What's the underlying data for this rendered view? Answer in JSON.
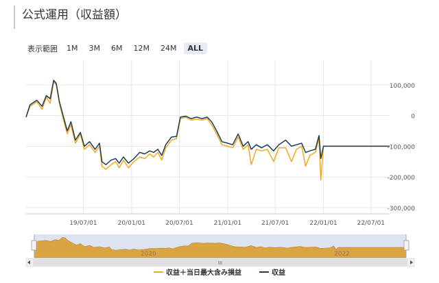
{
  "header": {
    "title": "公式運用（収益額）"
  },
  "range_selector": {
    "label": "表示範囲",
    "buttons": [
      "1M",
      "3M",
      "6M",
      "12M",
      "24M",
      "ALL"
    ],
    "selected": "ALL"
  },
  "navigator": {
    "year_labels": [
      "2020",
      "2022"
    ],
    "handle_glyph": "III"
  },
  "colors": {
    "gold": "#f2a81d",
    "navy": "#1d3a52",
    "nav_fill": "#d9a441",
    "nav_bg": "#dde3f1"
  },
  "chart_data": {
    "type": "line",
    "title": "",
    "ylim": [
      -320000,
      180000
    ],
    "y_ticks": [
      {
        "value": 100000,
        "label": "100,000"
      },
      {
        "value": 0,
        "label": "0"
      },
      {
        "value": -100000,
        "label": "-100,000"
      },
      {
        "value": -200000,
        "label": "-200,000"
      },
      {
        "value": -300000,
        "label": "-300,000"
      }
    ],
    "x_range": [
      "2018-11-25",
      "2022-09-10"
    ],
    "x_ticks": [
      {
        "date": "2019-07-01",
        "label": "19/07/01"
      },
      {
        "date": "2020-01-01",
        "label": "20/01/01"
      },
      {
        "date": "2020-07-01",
        "label": "20/07/01"
      },
      {
        "date": "2021-01-01",
        "label": "21/01/01"
      },
      {
        "date": "2021-07-01",
        "label": "21/07/01"
      },
      {
        "date": "2022-01-01",
        "label": "22/01/01"
      },
      {
        "date": "2022-07-01",
        "label": "22/07/01"
      }
    ],
    "legend_position": "bottom-center",
    "series": [
      {
        "name": "収益＋当日最大含み損益",
        "color": "#f2a81d",
        "points": [
          [
            "2018-11-25",
            -5000
          ],
          [
            "2018-12-10",
            30000
          ],
          [
            "2019-01-05",
            45000
          ],
          [
            "2019-01-25",
            20000
          ],
          [
            "2019-02-10",
            60000
          ],
          [
            "2019-02-25",
            40000
          ],
          [
            "2019-03-10",
            110000
          ],
          [
            "2019-03-20",
            100000
          ],
          [
            "2019-04-01",
            40000
          ],
          [
            "2019-04-15",
            -10000
          ],
          [
            "2019-05-01",
            -60000
          ],
          [
            "2019-05-15",
            -30000
          ],
          [
            "2019-06-01",
            -90000
          ],
          [
            "2019-06-20",
            -60000
          ],
          [
            "2019-07-05",
            -110000
          ],
          [
            "2019-07-25",
            -95000
          ],
          [
            "2019-08-15",
            -120000
          ],
          [
            "2019-09-01",
            -100000
          ],
          [
            "2019-09-10",
            -165000
          ],
          [
            "2019-09-25",
            -175000
          ],
          [
            "2019-10-15",
            -160000
          ],
          [
            "2019-11-01",
            -150000
          ],
          [
            "2019-11-15",
            -170000
          ],
          [
            "2019-12-01",
            -145000
          ],
          [
            "2019-12-20",
            -170000
          ],
          [
            "2020-01-10",
            -150000
          ],
          [
            "2020-02-01",
            -135000
          ],
          [
            "2020-02-20",
            -140000
          ],
          [
            "2020-03-10",
            -125000
          ],
          [
            "2020-03-25",
            -135000
          ],
          [
            "2020-04-10",
            -120000
          ],
          [
            "2020-04-25",
            -145000
          ],
          [
            "2020-05-10",
            -105000
          ],
          [
            "2020-06-01",
            -80000
          ],
          [
            "2020-06-20",
            -75000
          ],
          [
            "2020-07-05",
            -10000
          ],
          [
            "2020-07-25",
            -5000
          ],
          [
            "2020-08-15",
            -15000
          ],
          [
            "2020-09-05",
            -12000
          ],
          [
            "2020-09-25",
            -15000
          ],
          [
            "2020-10-15",
            -10000
          ],
          [
            "2020-11-01",
            -30000
          ],
          [
            "2020-11-20",
            -60000
          ],
          [
            "2020-12-10",
            -95000
          ],
          [
            "2021-01-01",
            -100000
          ],
          [
            "2021-01-20",
            -105000
          ],
          [
            "2021-02-10",
            -70000
          ],
          [
            "2021-03-01",
            -110000
          ],
          [
            "2021-03-20",
            -95000
          ],
          [
            "2021-04-01",
            -160000
          ],
          [
            "2021-04-20",
            -110000
          ],
          [
            "2021-05-10",
            -115000
          ],
          [
            "2021-06-01",
            -110000
          ],
          [
            "2021-06-25",
            -150000
          ],
          [
            "2021-07-15",
            -105000
          ],
          [
            "2021-08-10",
            -105000
          ],
          [
            "2021-09-01",
            -150000
          ],
          [
            "2021-09-20",
            -110000
          ],
          [
            "2021-10-10",
            -100000
          ],
          [
            "2021-10-25",
            -165000
          ],
          [
            "2021-11-10",
            -130000
          ],
          [
            "2021-12-01",
            -120000
          ],
          [
            "2021-12-15",
            -75000
          ],
          [
            "2021-12-22",
            -210000
          ],
          [
            "2022-01-01",
            -100000
          ],
          [
            "2022-09-10",
            -100000
          ]
        ]
      },
      {
        "name": "収益",
        "color": "#1d3a52",
        "points": [
          [
            "2018-11-25",
            -5000
          ],
          [
            "2018-12-10",
            35000
          ],
          [
            "2019-01-05",
            50000
          ],
          [
            "2019-01-25",
            30000
          ],
          [
            "2019-02-10",
            65000
          ],
          [
            "2019-02-25",
            55000
          ],
          [
            "2019-03-10",
            115000
          ],
          [
            "2019-03-20",
            105000
          ],
          [
            "2019-04-01",
            45000
          ],
          [
            "2019-04-15",
            0
          ],
          [
            "2019-05-01",
            -50000
          ],
          [
            "2019-05-15",
            -20000
          ],
          [
            "2019-06-01",
            -80000
          ],
          [
            "2019-06-20",
            -55000
          ],
          [
            "2019-07-05",
            -100000
          ],
          [
            "2019-07-25",
            -85000
          ],
          [
            "2019-08-15",
            -110000
          ],
          [
            "2019-09-01",
            -90000
          ],
          [
            "2019-09-10",
            -150000
          ],
          [
            "2019-09-25",
            -160000
          ],
          [
            "2019-10-15",
            -145000
          ],
          [
            "2019-11-01",
            -140000
          ],
          [
            "2019-11-15",
            -155000
          ],
          [
            "2019-12-01",
            -135000
          ],
          [
            "2019-12-20",
            -155000
          ],
          [
            "2020-01-10",
            -140000
          ],
          [
            "2020-02-01",
            -120000
          ],
          [
            "2020-02-20",
            -125000
          ],
          [
            "2020-03-10",
            -115000
          ],
          [
            "2020-03-25",
            -120000
          ],
          [
            "2020-04-10",
            -110000
          ],
          [
            "2020-04-25",
            -130000
          ],
          [
            "2020-05-10",
            -95000
          ],
          [
            "2020-06-01",
            -70000
          ],
          [
            "2020-06-20",
            -68000
          ],
          [
            "2020-07-05",
            -5000
          ],
          [
            "2020-07-25",
            -2000
          ],
          [
            "2020-08-15",
            -10000
          ],
          [
            "2020-09-05",
            -5000
          ],
          [
            "2020-09-25",
            -10000
          ],
          [
            "2020-10-15",
            -5000
          ],
          [
            "2020-11-01",
            -20000
          ],
          [
            "2020-11-20",
            -50000
          ],
          [
            "2020-12-10",
            -85000
          ],
          [
            "2021-01-01",
            -90000
          ],
          [
            "2021-01-20",
            -95000
          ],
          [
            "2021-02-10",
            -60000
          ],
          [
            "2021-03-01",
            -100000
          ],
          [
            "2021-03-20",
            -85000
          ],
          [
            "2021-04-01",
            -110000
          ],
          [
            "2021-04-20",
            -95000
          ],
          [
            "2021-05-10",
            -105000
          ],
          [
            "2021-06-01",
            -95000
          ],
          [
            "2021-06-25",
            -115000
          ],
          [
            "2021-07-15",
            -95000
          ],
          [
            "2021-08-10",
            -80000
          ],
          [
            "2021-09-01",
            -100000
          ],
          [
            "2021-09-20",
            -95000
          ],
          [
            "2021-10-10",
            -90000
          ],
          [
            "2021-10-25",
            -120000
          ],
          [
            "2021-11-10",
            -115000
          ],
          [
            "2021-12-01",
            -110000
          ],
          [
            "2021-12-15",
            -65000
          ],
          [
            "2021-12-22",
            -140000
          ],
          [
            "2022-01-01",
            -100000
          ],
          [
            "2022-09-10",
            -100000
          ]
        ]
      }
    ]
  }
}
